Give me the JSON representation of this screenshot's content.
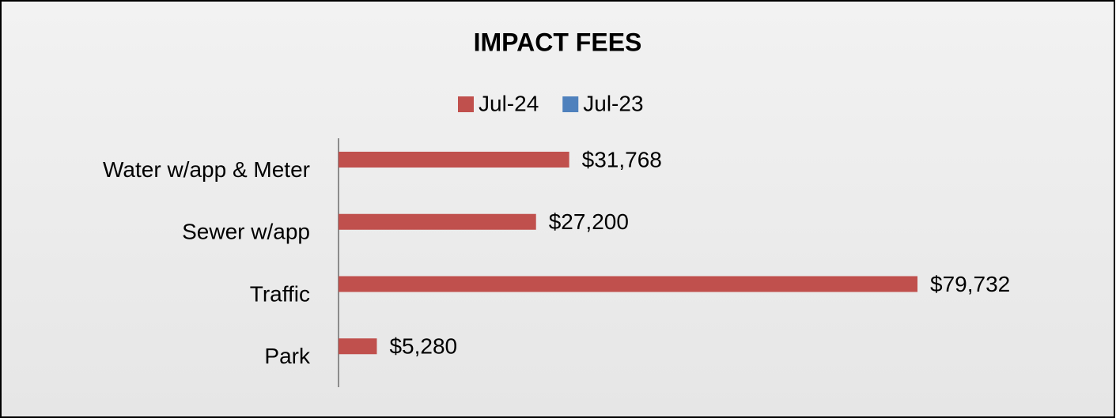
{
  "chart_data": {
    "type": "bar",
    "orientation": "horizontal",
    "title": "IMPACT FEES",
    "categories": [
      "Water w/app & Meter",
      "Sewer w/app",
      "Traffic",
      "Park"
    ],
    "series": [
      {
        "name": "Jul-24",
        "color": "#c0504d",
        "values": [
          31768,
          27200,
          79732,
          5280
        ],
        "value_labels": [
          "$31,768",
          "$27,200",
          "$79,732",
          "$5,280"
        ]
      },
      {
        "name": "Jul-23",
        "color": "#4f81bd",
        "values": [
          null,
          null,
          null,
          null
        ]
      }
    ],
    "legend": "top"
  }
}
